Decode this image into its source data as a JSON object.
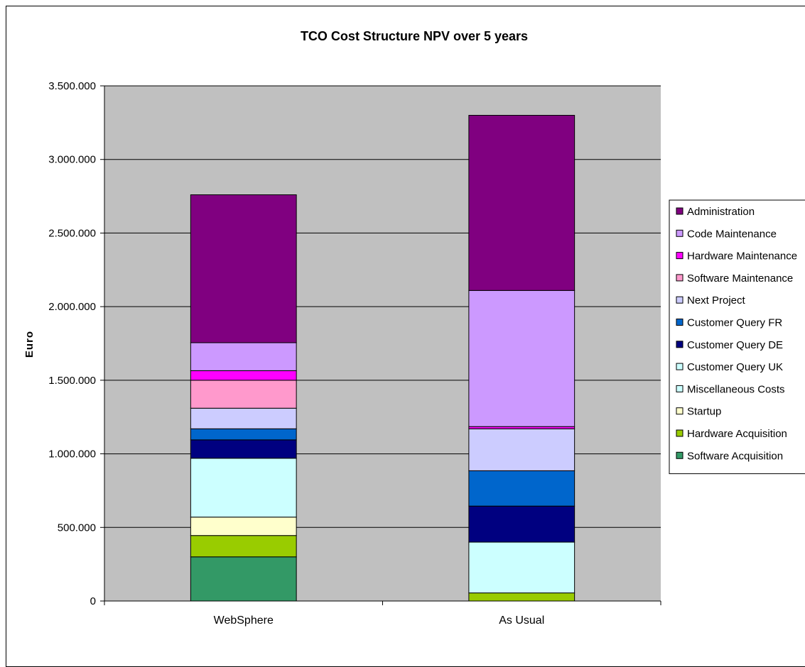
{
  "chart_data": {
    "type": "bar",
    "stacked": true,
    "title": "TCO Cost Structure NPV over 5 years",
    "xlabel": "",
    "ylabel": "Euro",
    "ylim": [
      0,
      3500000
    ],
    "yticks": [
      0,
      500000,
      1000000,
      1500000,
      2000000,
      2500000,
      3000000,
      3500000
    ],
    "ytick_labels": [
      "0",
      "500.000",
      "1.000.000",
      "1.500.000",
      "2.000.000",
      "2.500.000",
      "3.000.000",
      "3.500.000"
    ],
    "categories": [
      "WebSphere",
      "As Usual"
    ],
    "grid": true,
    "legend_position": "right",
    "plot_background": "#c0c0c0",
    "series": [
      {
        "name": "Software Acquisition",
        "color": "#339966",
        "values": [
          300000,
          0
        ]
      },
      {
        "name": "Hardware Acquisition",
        "color": "#99cc00",
        "values": [
          145000,
          55000
        ]
      },
      {
        "name": "Startup",
        "color": "#ffffcc",
        "values": [
          125000,
          0
        ]
      },
      {
        "name": "Miscellaneous Costs",
        "color": "#ccffff",
        "values": [
          400000,
          0
        ]
      },
      {
        "name": "Customer Query UK",
        "color": "#ccffff",
        "values": [
          0,
          345000
        ]
      },
      {
        "name": "Customer Query DE",
        "color": "#000080",
        "values": [
          125000,
          245000
        ]
      },
      {
        "name": "Customer Query FR",
        "color": "#0066cc",
        "values": [
          75000,
          240000
        ]
      },
      {
        "name": "Next Project",
        "color": "#ccccff",
        "values": [
          140000,
          285000
        ]
      },
      {
        "name": "Software Maintenance",
        "color": "#ff99cc",
        "values": [
          190000,
          0
        ]
      },
      {
        "name": "Hardware Maintenance",
        "color": "#ff00ff",
        "values": [
          65000,
          15000
        ]
      },
      {
        "name": "Code Maintenance",
        "color": "#cc99ff",
        "values": [
          190000,
          925000
        ]
      },
      {
        "name": "Administration",
        "color": "#800080",
        "values": [
          1005000,
          1190000
        ]
      }
    ],
    "legend_order": [
      "Administration",
      "Code Maintenance",
      "Hardware Maintenance",
      "Software Maintenance",
      "Next Project",
      "Customer Query FR",
      "Customer Query DE",
      "Customer Query UK",
      "Miscellaneous Costs",
      "Startup",
      "Hardware Acquisition",
      "Software Acquisition"
    ]
  }
}
